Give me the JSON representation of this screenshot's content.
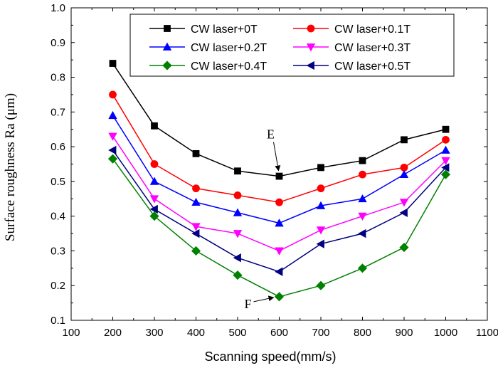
{
  "chart_data": {
    "type": "line",
    "xlabel": "Scanning speed(mm/s)",
    "ylabel": "Surface roughness Ra (μm)",
    "xlim": [
      100,
      1100
    ],
    "ylim": [
      0.1,
      1.0
    ],
    "xticks": [
      100,
      200,
      300,
      400,
      500,
      600,
      700,
      800,
      900,
      1000,
      1100
    ],
    "yticks": [
      0.1,
      0.2,
      0.3,
      0.4,
      0.5,
      0.6,
      0.7,
      0.8,
      0.9,
      1.0
    ],
    "xtick_labels": [
      "100",
      "200",
      "300",
      "400",
      "500",
      "600",
      "700",
      "800",
      "900",
      "1000",
      "1100"
    ],
    "ytick_labels": [
      "0.1",
      "0.2",
      "0.3",
      "0.4",
      "0.5",
      "0.6",
      "0.7",
      "0.8",
      "0.9",
      "1.0"
    ],
    "grid": false,
    "legend_position": "top-right",
    "x": [
      200,
      300,
      400,
      500,
      600,
      700,
      800,
      900,
      1000
    ],
    "series": [
      {
        "name": "CW laser+0T",
        "color": "#000000",
        "marker": "square",
        "values": [
          0.84,
          0.66,
          0.58,
          0.53,
          0.515,
          0.54,
          0.56,
          0.62,
          0.65
        ]
      },
      {
        "name": "CW laser+0.1T",
        "color": "#ff0000",
        "marker": "circle",
        "values": [
          0.75,
          0.55,
          0.48,
          0.46,
          0.44,
          0.48,
          0.52,
          0.54,
          0.62
        ]
      },
      {
        "name": "CW laser+0.2T",
        "color": "#0000ff",
        "marker": "triangle-up",
        "values": [
          0.69,
          0.5,
          0.44,
          0.41,
          0.38,
          0.43,
          0.45,
          0.52,
          0.59
        ]
      },
      {
        "name": "CW laser+0.3T",
        "color": "#ff00ff",
        "marker": "triangle-down",
        "values": [
          0.63,
          0.45,
          0.37,
          0.35,
          0.3,
          0.36,
          0.4,
          0.44,
          0.56
        ]
      },
      {
        "name": "CW laser+0.4T",
        "color": "#008000",
        "marker": "diamond",
        "values": [
          0.565,
          0.4,
          0.3,
          0.23,
          0.168,
          0.2,
          0.25,
          0.31,
          0.52
        ]
      },
      {
        "name": "CW laser+0.5T",
        "color": "#000080",
        "marker": "triangle-left",
        "values": [
          0.59,
          0.42,
          0.35,
          0.28,
          0.24,
          0.32,
          0.35,
          0.41,
          0.54
        ]
      }
    ],
    "annotations": [
      {
        "text": "E",
        "x": 600,
        "y": 0.515
      },
      {
        "text": "F",
        "x": 600,
        "y": 0.168
      }
    ]
  }
}
